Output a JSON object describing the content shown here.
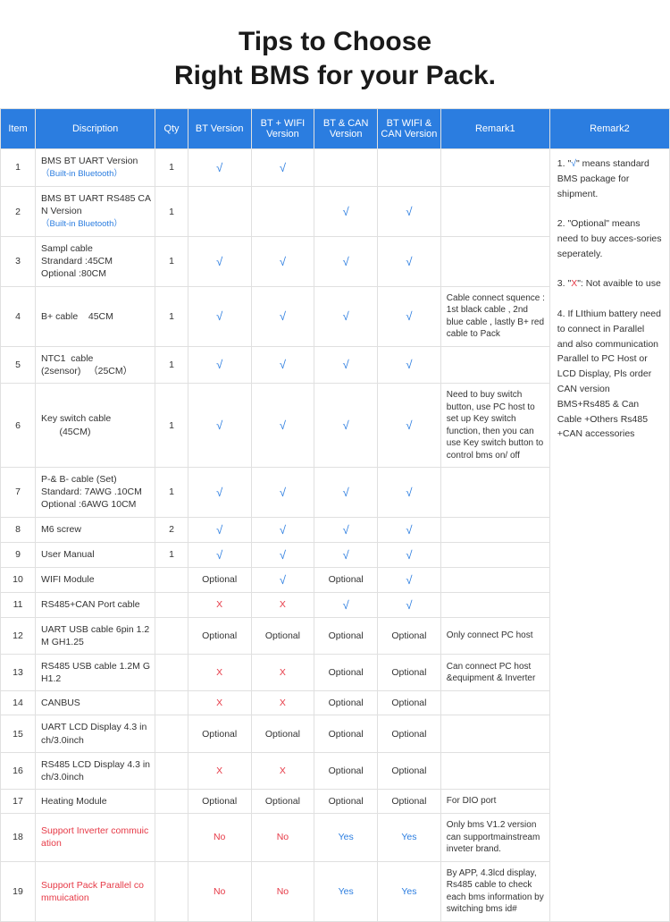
{
  "title_line1": "Tips to Choose",
  "title_line2": "Right BMS for your Pack.",
  "headers": {
    "item": "Item",
    "desc": "Discription",
    "qty": "Qty",
    "v1": "BT Version",
    "v2": "BT + WIFI Version",
    "v3": "BT & CAN Version",
    "v4": "BT WIFI & CAN Version",
    "rem1": "Remark1",
    "rem2": "Remark2"
  },
  "marks": {
    "check": "√",
    "x": "X",
    "opt": "Optional",
    "no": "No",
    "yes": "Yes"
  },
  "rows": [
    {
      "n": "1",
      "desc": "BMS BT UART Version",
      "sub": "（Built-in Bluetooth）",
      "qty": "1",
      "v": [
        "c",
        "c",
        "",
        ""
      ],
      "rem1": ""
    },
    {
      "n": "2",
      "desc": "BMS BT UART RS485 CAN Version",
      "sub": "（Built-in Bluetooth）",
      "qty": "1",
      "v": [
        "",
        "",
        "c",
        "c"
      ],
      "rem1": ""
    },
    {
      "n": "3",
      "desc": "Sampl cable\nStrandard :45CM\nOptional :80CM",
      "qty": "1",
      "v": [
        "c",
        "c",
        "c",
        "c"
      ],
      "rem1": ""
    },
    {
      "n": "4",
      "desc": "B+ cable    45CM",
      "qty": "1",
      "v": [
        "c",
        "c",
        "c",
        "c"
      ],
      "rem1": "Cable connect squence :  1st black cable , 2nd blue cable , lastly B+ red cable to Pack"
    },
    {
      "n": "5",
      "desc": "NTC1  cable\n(2sensor)   （25CM）",
      "qty": "1",
      "v": [
        "c",
        "c",
        "c",
        "c"
      ],
      "rem1": ""
    },
    {
      "n": "6",
      "desc": "Key switch cable\n       (45CM)",
      "qty": "1",
      "v": [
        "c",
        "c",
        "c",
        "c"
      ],
      "rem1": "Need to buy switch button, use PC host to set up Key switch function, then you can use Key switch button to control bms on/ off"
    },
    {
      "n": "7",
      "desc": "P-& B- cable (Set)\nStandard: 7AWG .10CM\nOptional :6AWG 10CM",
      "qty": "1",
      "v": [
        "c",
        "c",
        "c",
        "c"
      ],
      "rem1": ""
    },
    {
      "n": "8",
      "desc": "M6 screw",
      "qty": "2",
      "v": [
        "c",
        "c",
        "c",
        "c"
      ],
      "rem1": ""
    },
    {
      "n": "9",
      "desc": "User Manual",
      "qty": "1",
      "v": [
        "c",
        "c",
        "c",
        "c"
      ],
      "rem1": ""
    },
    {
      "n": "10",
      "desc": "WIFI Module",
      "qty": "",
      "v": [
        "o",
        "c",
        "o",
        "c"
      ],
      "rem1": ""
    },
    {
      "n": "11",
      "desc": "RS485+CAN Port cable",
      "qty": "",
      "v": [
        "x",
        "x",
        "c",
        "c"
      ],
      "rem1": ""
    },
    {
      "n": "12",
      "desc": "UART USB cable 6pin 1.2M GH1.25",
      "qty": "",
      "v": [
        "o",
        "o",
        "o",
        "o"
      ],
      "rem1": "Only connect PC host"
    },
    {
      "n": "13",
      "desc": "RS485 USB cable 1.2M GH1.2",
      "qty": "",
      "v": [
        "x",
        "x",
        "o",
        "o"
      ],
      "rem1": "Can connect PC host &equipment & Inverter"
    },
    {
      "n": "14",
      "desc": "CANBUS",
      "qty": "",
      "v": [
        "x",
        "x",
        "o",
        "o"
      ],
      "rem1": ""
    },
    {
      "n": "15",
      "desc": "UART LCD Display 4.3 inch/3.0inch",
      "qty": "",
      "v": [
        "o",
        "o",
        "o",
        "o"
      ],
      "rem1": ""
    },
    {
      "n": "16",
      "desc": "RS485 LCD Display 4.3 inch/3.0inch",
      "qty": "",
      "v": [
        "x",
        "x",
        "o",
        "o"
      ],
      "rem1": ""
    },
    {
      "n": "17",
      "desc": "Heating Module",
      "qty": "",
      "v": [
        "o",
        "o",
        "o",
        "o"
      ],
      "rem1": "For DIO port"
    },
    {
      "n": "18",
      "desc": "Support Inverter commuication",
      "red": true,
      "qty": "",
      "v": [
        "n",
        "n",
        "y",
        "y"
      ],
      "rem1": "Only bms V1.2 version can supportmainstream inveter brand."
    },
    {
      "n": "19",
      "desc": "Support Pack Parallel commuication",
      "red": true,
      "qty": "",
      "v": [
        "n",
        "n",
        "y",
        "y"
      ],
      "rem1": "By APP, 4.3lcd display, Rs485 cable to check each bms information by switching bms id#"
    }
  ],
  "remark2": {
    "p1a": "1. \"",
    "p1b": "\" means standard BMS package for shipment.",
    "p2": "2. \"Optional\" means need to buy acces-sories seperately.",
    "p3a": "3. \"",
    "p3b": "\": Not avaible to use",
    "p4": "4. If LIthium battery need to connect in Parallel and also communication Parallel to PC Host or LCD Display, Pls order CAN version BMS+Rs485 & Can Cable +Others Rs485 +CAN accessories"
  },
  "style": {
    "header_bg": "#2b7de0",
    "header_fg": "#ffffff",
    "border": "#e0e0e0",
    "check_color": "#2b7de0",
    "x_color": "#e63946",
    "title_fontsize": 30
  }
}
